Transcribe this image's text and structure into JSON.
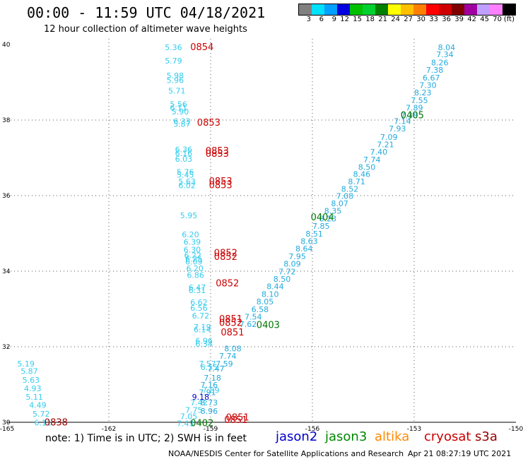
{
  "title": "00:00 - 11:59 UTC 04/18/2021",
  "subtitle": "12 hour collection of altimeter wave heights",
  "colorbar": {
    "colors": [
      "#808080",
      "#00e0ff",
      "#00a0ff",
      "#0000e0",
      "#00c000",
      "#00d030",
      "#008000",
      "#ffff00",
      "#ffc000",
      "#ff8000",
      "#ff0000",
      "#d00000",
      "#800000",
      "#a000a0",
      "#c0a0ff",
      "#ff80ff",
      "#000000"
    ],
    "labels": [
      "3",
      "6",
      "9",
      "12",
      "15",
      "18",
      "21",
      "24",
      "27",
      "30",
      "33",
      "36",
      "39",
      "42",
      "45",
      "70",
      "(ft)"
    ]
  },
  "axes": {
    "x_ticks": [
      "-165",
      "-162",
      "-159",
      "-156",
      "-153",
      "-150"
    ],
    "y_ticks": [
      "40",
      "38",
      "36",
      "34",
      "32",
      "30"
    ],
    "lon_range": [
      -165,
      -150
    ],
    "lat_range": [
      30,
      40
    ]
  },
  "colors": {
    "cyan": "#33ccee",
    "lightblue": "#22aadd",
    "blue": "#0000cc",
    "green": "#007700",
    "red": "#cc0000",
    "orange": "#ff8800",
    "darkred": "#990000"
  },
  "swh_labels": [
    {
      "text": "8.04",
      "lon": -152.3,
      "lat": 39.85,
      "c": "lightblue"
    },
    {
      "text": "7.34",
      "lon": -152.35,
      "lat": 39.66,
      "c": "lightblue"
    },
    {
      "text": "8.26",
      "lon": -152.5,
      "lat": 39.45,
      "c": "lightblue"
    },
    {
      "text": "7.38",
      "lon": -152.65,
      "lat": 39.25,
      "c": "lightblue"
    },
    {
      "text": "6.67",
      "lon": -152.75,
      "lat": 39.05,
      "c": "lightblue"
    },
    {
      "text": "7.30",
      "lon": -152.85,
      "lat": 38.85,
      "c": "lightblue"
    },
    {
      "text": "8.23",
      "lon": -153.0,
      "lat": 38.65,
      "c": "lightblue"
    },
    {
      "text": "7.55",
      "lon": -153.1,
      "lat": 38.45,
      "c": "lightblue"
    },
    {
      "text": "7.89",
      "lon": -153.25,
      "lat": 38.25,
      "c": "lightblue"
    },
    {
      "text": "7.38",
      "lon": -153.4,
      "lat": 38.05,
      "c": "lightblue"
    },
    {
      "text": "7.14",
      "lon": -153.6,
      "lat": 37.9,
      "c": "lightblue"
    },
    {
      "text": "7.93",
      "lon": -153.75,
      "lat": 37.7,
      "c": "lightblue"
    },
    {
      "text": "7.09",
      "lon": -154.0,
      "lat": 37.48,
      "c": "lightblue"
    },
    {
      "text": "7.21",
      "lon": -154.1,
      "lat": 37.28,
      "c": "lightblue"
    },
    {
      "text": "7.40",
      "lon": -154.3,
      "lat": 37.08,
      "c": "lightblue"
    },
    {
      "text": "7.74",
      "lon": -154.5,
      "lat": 36.88,
      "c": "lightblue"
    },
    {
      "text": "8.50",
      "lon": -154.65,
      "lat": 36.68,
      "c": "lightblue"
    },
    {
      "text": "8.46",
      "lon": -154.8,
      "lat": 36.5,
      "c": "lightblue"
    },
    {
      "text": "8.71",
      "lon": -154.95,
      "lat": 36.3,
      "c": "lightblue"
    },
    {
      "text": "8.52",
      "lon": -155.15,
      "lat": 36.1,
      "c": "lightblue"
    },
    {
      "text": "7.08",
      "lon": -155.3,
      "lat": 35.92,
      "c": "lightblue"
    },
    {
      "text": "8.07",
      "lon": -155.45,
      "lat": 35.72,
      "c": "lightblue"
    },
    {
      "text": "8.35",
      "lon": -155.65,
      "lat": 35.52,
      "c": "lightblue"
    },
    {
      "text": "8.23",
      "lon": -155.8,
      "lat": 35.32,
      "c": "lightblue"
    },
    {
      "text": "7.85",
      "lon": -156.0,
      "lat": 35.12,
      "c": "lightblue"
    },
    {
      "text": "8.51",
      "lon": -156.2,
      "lat": 34.92,
      "c": "lightblue"
    },
    {
      "text": "8.63",
      "lon": -156.35,
      "lat": 34.72,
      "c": "lightblue"
    },
    {
      "text": "8.64",
      "lon": -156.5,
      "lat": 34.52,
      "c": "lightblue"
    },
    {
      "text": "7.95",
      "lon": -156.7,
      "lat": 34.32,
      "c": "lightblue"
    },
    {
      "text": "8.09",
      "lon": -156.85,
      "lat": 34.12,
      "c": "lightblue"
    },
    {
      "text": "7.72",
      "lon": -157.0,
      "lat": 33.92,
      "c": "lightblue"
    },
    {
      "text": "8.50",
      "lon": -157.15,
      "lat": 33.72,
      "c": "lightblue"
    },
    {
      "text": "8.44",
      "lon": -157.35,
      "lat": 33.52,
      "c": "lightblue"
    },
    {
      "text": "8.10",
      "lon": -157.5,
      "lat": 33.32,
      "c": "lightblue"
    },
    {
      "text": "8.05",
      "lon": -157.65,
      "lat": 33.12,
      "c": "lightblue"
    },
    {
      "text": "6.58",
      "lon": -157.8,
      "lat": 32.92,
      "c": "lightblue"
    },
    {
      "text": "7.54",
      "lon": -158.0,
      "lat": 32.72,
      "c": "lightblue"
    },
    {
      "text": "7.62",
      "lon": -158.15,
      "lat": 32.52,
      "c": "lightblue"
    },
    {
      "text": "8.08",
      "lon": -158.6,
      "lat": 31.88,
      "c": "lightblue"
    },
    {
      "text": "7.74",
      "lon": -158.75,
      "lat": 31.68,
      "c": "lightblue"
    },
    {
      "text": "7.59",
      "lon": -158.85,
      "lat": 31.48,
      "c": "lightblue"
    },
    {
      "text": "7.47",
      "lon": -159.1,
      "lat": 31.35,
      "c": "lightblue"
    },
    {
      "text": "7.18",
      "lon": -159.2,
      "lat": 31.1,
      "c": "lightblue"
    },
    {
      "text": "7.16",
      "lon": -159.3,
      "lat": 30.92,
      "c": "lightblue"
    },
    {
      "text": "7.91",
      "lon": -159.35,
      "lat": 30.72,
      "c": "lightblue"
    },
    {
      "text": "8.73",
      "lon": -159.3,
      "lat": 30.45,
      "c": "lightblue"
    },
    {
      "text": "8.96",
      "lon": -159.3,
      "lat": 30.22,
      "c": "lightblue"
    },
    {
      "text": "5.36",
      "lon": -160.35,
      "lat": 39.85,
      "c": "cyan"
    },
    {
      "text": "5.79",
      "lon": -160.35,
      "lat": 39.5,
      "c": "cyan"
    },
    {
      "text": "5.98",
      "lon": -160.3,
      "lat": 39.1,
      "c": "cyan"
    },
    {
      "text": "5.96",
      "lon": -160.3,
      "lat": 38.98,
      "c": "cyan"
    },
    {
      "text": "5.71",
      "lon": -160.25,
      "lat": 38.7,
      "c": "cyan"
    },
    {
      "text": "5.56",
      "lon": -160.2,
      "lat": 38.35,
      "c": "cyan"
    },
    {
      "text": "6.11",
      "lon": -160.2,
      "lat": 38.25,
      "c": "cyan"
    },
    {
      "text": "5.90",
      "lon": -160.15,
      "lat": 38.15,
      "c": "cyan"
    },
    {
      "text": "6.33",
      "lon": -160.1,
      "lat": 37.9,
      "c": "cyan"
    },
    {
      "text": "5.87",
      "lon": -160.1,
      "lat": 37.82,
      "c": "cyan"
    },
    {
      "text": "6.36",
      "lon": -160.05,
      "lat": 37.15,
      "c": "cyan"
    },
    {
      "text": "6.16",
      "lon": -160.05,
      "lat": 37.05,
      "c": "cyan"
    },
    {
      "text": "6.03",
      "lon": -160.05,
      "lat": 36.9,
      "c": "cyan"
    },
    {
      "text": "5.76",
      "lon": -160.0,
      "lat": 36.55,
      "c": "cyan"
    },
    {
      "text": "5.45",
      "lon": -160.0,
      "lat": 36.48,
      "c": "cyan"
    },
    {
      "text": "5.63",
      "lon": -159.95,
      "lat": 36.3,
      "c": "cyan"
    },
    {
      "text": "6.02",
      "lon": -159.95,
      "lat": 36.2,
      "c": "cyan"
    },
    {
      "text": "5.95",
      "lon": -159.9,
      "lat": 35.4,
      "c": "cyan"
    },
    {
      "text": "6.20",
      "lon": -159.85,
      "lat": 34.9,
      "c": "cyan"
    },
    {
      "text": "6.39",
      "lon": -159.8,
      "lat": 34.7,
      "c": "cyan"
    },
    {
      "text": "6.30",
      "lon": -159.8,
      "lat": 34.5,
      "c": "cyan"
    },
    {
      "text": "6.22",
      "lon": -159.78,
      "lat": 34.35,
      "c": "cyan"
    },
    {
      "text": "6.25",
      "lon": -159.75,
      "lat": 34.25,
      "c": "cyan"
    },
    {
      "text": "6.09",
      "lon": -159.75,
      "lat": 34.18,
      "c": "cyan"
    },
    {
      "text": "6.20",
      "lon": -159.72,
      "lat": 34.0,
      "c": "cyan"
    },
    {
      "text": "6.86",
      "lon": -159.7,
      "lat": 33.82,
      "c": "cyan"
    },
    {
      "text": "6.47",
      "lon": -159.65,
      "lat": 33.5,
      "c": "cyan"
    },
    {
      "text": "6.31",
      "lon": -159.65,
      "lat": 33.42,
      "c": "cyan"
    },
    {
      "text": "6.62",
      "lon": -159.6,
      "lat": 33.1,
      "c": "cyan"
    },
    {
      "text": "6.56",
      "lon": -159.6,
      "lat": 32.95,
      "c": "cyan"
    },
    {
      "text": "6.72",
      "lon": -159.55,
      "lat": 32.75,
      "c": "cyan"
    },
    {
      "text": "7.19",
      "lon": -159.5,
      "lat": 32.45,
      "c": "cyan"
    },
    {
      "text": "6.14",
      "lon": -159.5,
      "lat": 32.38,
      "c": "cyan"
    },
    {
      "text": "6.96",
      "lon": -159.45,
      "lat": 32.08,
      "c": "cyan"
    },
    {
      "text": "6.34",
      "lon": -159.45,
      "lat": 32.0,
      "c": "cyan"
    },
    {
      "text": "7.57",
      "lon": -159.35,
      "lat": 31.48,
      "c": "cyan"
    },
    {
      "text": "6.55",
      "lon": -159.3,
      "lat": 31.38,
      "c": "cyan"
    },
    {
      "text": "7.89",
      "lon": -159.25,
      "lat": 30.78,
      "c": "cyan"
    },
    {
      "text": "9.18",
      "lon": -159.55,
      "lat": 30.6,
      "c": "blue"
    },
    {
      "text": "7.42",
      "lon": -159.6,
      "lat": 30.45,
      "c": "cyan"
    },
    {
      "text": "7.75",
      "lon": -159.75,
      "lat": 30.25,
      "c": "cyan"
    },
    {
      "text": "7.05",
      "lon": -159.9,
      "lat": 30.08,
      "c": "cyan"
    },
    {
      "text": "7.43",
      "lon": -160.0,
      "lat": 29.9,
      "c": "cyan"
    },
    {
      "text": "5.19",
      "lon": -164.7,
      "lat": 31.48,
      "c": "cyan"
    },
    {
      "text": "5.87",
      "lon": -164.6,
      "lat": 31.28,
      "c": "cyan"
    },
    {
      "text": "5.63",
      "lon": -164.55,
      "lat": 31.05,
      "c": "cyan"
    },
    {
      "text": "4.93",
      "lon": -164.5,
      "lat": 30.82,
      "c": "cyan"
    },
    {
      "text": "5.11",
      "lon": -164.45,
      "lat": 30.6,
      "c": "cyan"
    },
    {
      "text": "4.49",
      "lon": -164.35,
      "lat": 30.38,
      "c": "cyan"
    },
    {
      "text": "5.72",
      "lon": -164.25,
      "lat": 30.15,
      "c": "cyan"
    },
    {
      "text": "6.11",
      "lon": -164.2,
      "lat": 29.92,
      "c": "cyan"
    }
  ],
  "time_labels": [
    {
      "text": "0854",
      "lon": -159.6,
      "lat": 39.85,
      "c": "red"
    },
    {
      "text": "0853",
      "lon": -159.4,
      "lat": 37.85,
      "c": "red"
    },
    {
      "text": "0853",
      "lon": -159.15,
      "lat": 37.1,
      "c": "red"
    },
    {
      "text": "0853",
      "lon": -159.15,
      "lat": 37.03,
      "c": "red"
    },
    {
      "text": "0853",
      "lon": -159.05,
      "lat": 36.3,
      "c": "red"
    },
    {
      "text": "0853",
      "lon": -159.05,
      "lat": 36.2,
      "c": "red"
    },
    {
      "text": "0852",
      "lon": -158.9,
      "lat": 34.4,
      "c": "red"
    },
    {
      "text": "0852",
      "lon": -158.9,
      "lat": 34.3,
      "c": "red"
    },
    {
      "text": "0852",
      "lon": -158.85,
      "lat": 33.6,
      "c": "red"
    },
    {
      "text": "0851",
      "lon": -158.75,
      "lat": 32.65,
      "c": "red"
    },
    {
      "text": "0852",
      "lon": -158.75,
      "lat": 32.55,
      "c": "red"
    },
    {
      "text": "0851",
      "lon": -158.7,
      "lat": 32.3,
      "c": "red"
    },
    {
      "text": "0851",
      "lon": -158.55,
      "lat": 30.05,
      "c": "red"
    },
    {
      "text": "0851",
      "lon": -158.6,
      "lat": 29.98,
      "c": "red"
    },
    {
      "text": "0838",
      "lon": -163.9,
      "lat": 29.92,
      "c": "darkred"
    },
    {
      "text": "0405",
      "lon": -153.4,
      "lat": 38.05,
      "c": "green"
    },
    {
      "text": "0404",
      "lon": -156.05,
      "lat": 35.35,
      "c": "green"
    },
    {
      "text": "0403",
      "lon": -157.65,
      "lat": 32.5,
      "c": "green"
    },
    {
      "text": "0402",
      "lon": -159.6,
      "lat": 29.9,
      "c": "green"
    }
  ],
  "note": "note: 1) Time is in UTC; 2) SWH is in feet",
  "satellites": [
    {
      "name": "jason2",
      "color": "#0000cc"
    },
    {
      "name": "jason3",
      "color": "#008800"
    },
    {
      "name": "altika",
      "color": "#ff8800"
    },
    {
      "name": "cryosat",
      "color": "#cc0000"
    },
    {
      "name": "s3a",
      "color": "#990000"
    }
  ],
  "credit": "NOAA/NESDIS Center for Satellite Applications and Research",
  "timestamp": "Apr 21 08:27:19 UTC 2021"
}
